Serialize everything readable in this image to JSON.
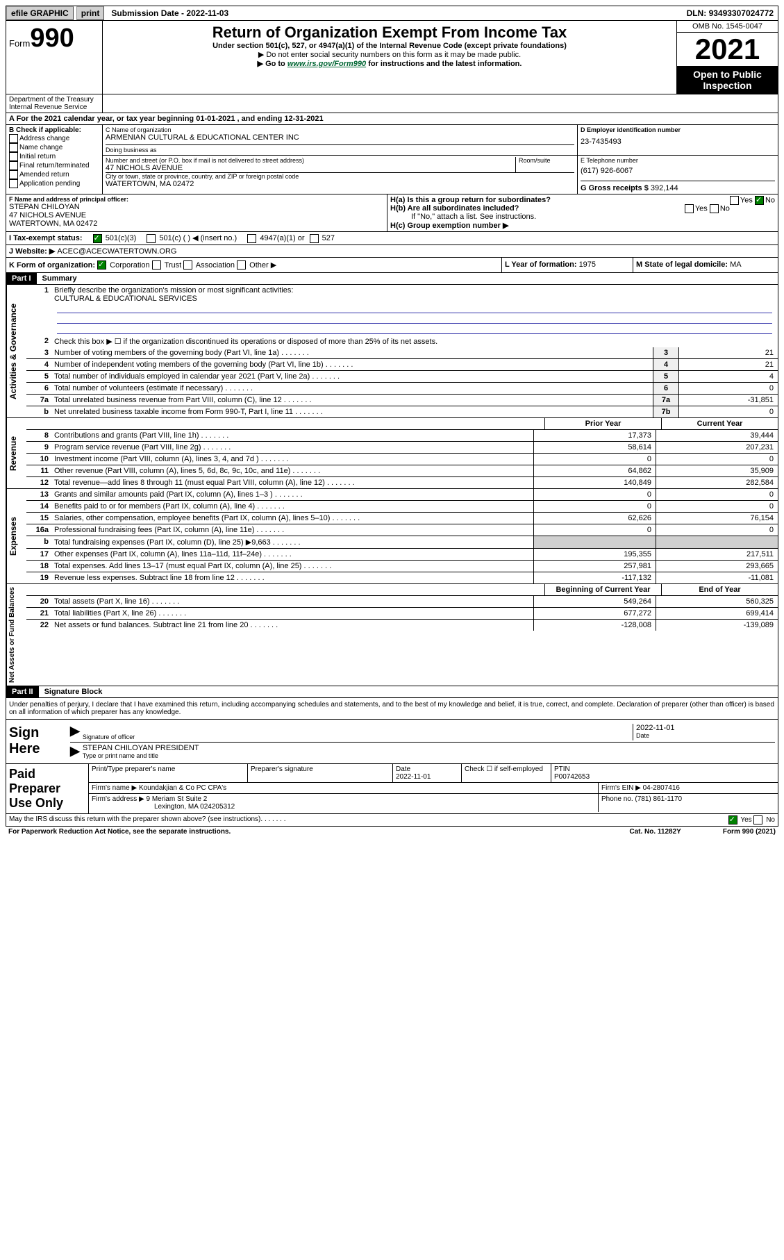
{
  "topbar": {
    "efile": "efile GRAPHIC",
    "print": "print",
    "subdate_label": "Submission Date - ",
    "subdate": "2022-11-03",
    "dln_label": "DLN: ",
    "dln": "93493307024772"
  },
  "header": {
    "form_prefix": "Form",
    "form_num": "990",
    "title": "Return of Organization Exempt From Income Tax",
    "subtitle": "Under section 501(c), 527, or 4947(a)(1) of the Internal Revenue Code (except private foundations)",
    "note1": "▶ Do not enter social security numbers on this form as it may be made public.",
    "note2_pre": "▶ Go to ",
    "note2_link": "www.irs.gov/Form990",
    "note2_post": " for instructions and the latest information.",
    "omb": "OMB No. 1545-0047",
    "year": "2021",
    "open_public": "Open to Public Inspection",
    "dept": "Department of the Treasury\nInternal Revenue Service"
  },
  "lineA": {
    "text_pre": "A For the 2021 calendar year, or tax year beginning ",
    "begin": "01-01-2021",
    "mid": " , and ending ",
    "end": "12-31-2021"
  },
  "B": {
    "label": "B Check if applicable:",
    "opts": [
      "Address change",
      "Name change",
      "Initial return",
      "Final return/terminated",
      "Amended return",
      "Application pending"
    ]
  },
  "C": {
    "name_label": "C Name of organization",
    "name": "ARMENIAN CULTURAL & EDUCATIONAL CENTER INC",
    "dba_label": "Doing business as",
    "street_label": "Number and street (or P.O. box if mail is not delivered to street address)",
    "room_label": "Room/suite",
    "street": "47 NICHOLS AVENUE",
    "city_label": "City or town, state or province, country, and ZIP or foreign postal code",
    "city": "WATERTOWN, MA  02472"
  },
  "D": {
    "label": "D Employer identification number",
    "value": "23-7435493"
  },
  "E": {
    "label": "E Telephone number",
    "value": "(617) 926-6067"
  },
  "G": {
    "label": "G Gross receipts $ ",
    "value": "392,144"
  },
  "F": {
    "label": "F  Name and address of principal officer:",
    "name": "STEPAN CHILOYAN",
    "addr1": "47 NICHOLS AVENUE",
    "addr2": "WATERTOWN, MA  02472"
  },
  "H": {
    "a_label": "H(a)  Is this a group return for subordinates?",
    "b_label": "H(b)  Are all subordinates included?",
    "b_note": "If \"No,\" attach a list. See instructions.",
    "c_label": "H(c)  Group exemption number ▶",
    "yes": "Yes",
    "no": "No"
  },
  "I": {
    "label": "I    Tax-exempt status:",
    "o1": "501(c)(3)",
    "o2": "501(c) (  ) ◀ (insert no.)",
    "o3": "4947(a)(1) or",
    "o4": "527"
  },
  "J": {
    "label": "J    Website: ▶ ",
    "value": "ACEC@ACECWATERTOWN.ORG"
  },
  "K": {
    "label": "K Form of organization:",
    "o1": "Corporation",
    "o2": "Trust",
    "o3": "Association",
    "o4": "Other ▶"
  },
  "L": {
    "label": "L Year of formation: ",
    "value": "1975"
  },
  "M": {
    "label": "M State of legal domicile: ",
    "value": "MA"
  },
  "partI": {
    "header": "Part I",
    "title": "Summary",
    "q1": "Briefly describe the organization's mission or most significant activities:",
    "q1val": "CULTURAL & EDUCATIONAL SERVICES",
    "q2": "Check this box ▶ ☐  if the organization discontinued its operations or disposed of more than 25% of its net assets.",
    "rows_gov": [
      {
        "n": "3",
        "d": "Number of voting members of the governing body (Part VI, line 1a)",
        "box": "3",
        "v": "21"
      },
      {
        "n": "4",
        "d": "Number of independent voting members of the governing body (Part VI, line 1b)",
        "box": "4",
        "v": "21"
      },
      {
        "n": "5",
        "d": "Total number of individuals employed in calendar year 2021 (Part V, line 2a)",
        "box": "5",
        "v": "4"
      },
      {
        "n": "6",
        "d": "Total number of volunteers (estimate if necessary)",
        "box": "6",
        "v": "0"
      },
      {
        "n": "7a",
        "d": "Total unrelated business revenue from Part VIII, column (C), line 12",
        "box": "7a",
        "v": "-31,851"
      },
      {
        "n": "b",
        "d": "Net unrelated business taxable income from Form 990-T, Part I, line 11",
        "box": "7b",
        "v": "0"
      }
    ],
    "prior_label": "Prior Year",
    "current_label": "Current Year",
    "rows_rev": [
      {
        "n": "8",
        "d": "Contributions and grants (Part VIII, line 1h)",
        "p": "17,373",
        "c": "39,444"
      },
      {
        "n": "9",
        "d": "Program service revenue (Part VIII, line 2g)",
        "p": "58,614",
        "c": "207,231"
      },
      {
        "n": "10",
        "d": "Investment income (Part VIII, column (A), lines 3, 4, and 7d )",
        "p": "0",
        "c": "0"
      },
      {
        "n": "11",
        "d": "Other revenue (Part VIII, column (A), lines 5, 6d, 8c, 9c, 10c, and 11e)",
        "p": "64,862",
        "c": "35,909"
      },
      {
        "n": "12",
        "d": "Total revenue—add lines 8 through 11 (must equal Part VIII, column (A), line 12)",
        "p": "140,849",
        "c": "282,584"
      }
    ],
    "rows_exp": [
      {
        "n": "13",
        "d": "Grants and similar amounts paid (Part IX, column (A), lines 1–3 )",
        "p": "0",
        "c": "0"
      },
      {
        "n": "14",
        "d": "Benefits paid to or for members (Part IX, column (A), line 4)",
        "p": "0",
        "c": "0"
      },
      {
        "n": "15",
        "d": "Salaries, other compensation, employee benefits (Part IX, column (A), lines 5–10)",
        "p": "62,626",
        "c": "76,154"
      },
      {
        "n": "16a",
        "d": "Professional fundraising fees (Part IX, column (A), line 11e)",
        "p": "0",
        "c": "0"
      },
      {
        "n": "b",
        "d": "Total fundraising expenses (Part IX, column (D), line 25) ▶9,663",
        "p": "",
        "c": "",
        "grey": true
      },
      {
        "n": "17",
        "d": "Other expenses (Part IX, column (A), lines 11a–11d, 11f–24e)",
        "p": "195,355",
        "c": "217,511"
      },
      {
        "n": "18",
        "d": "Total expenses. Add lines 13–17 (must equal Part IX, column (A), line 25)",
        "p": "257,981",
        "c": "293,665"
      },
      {
        "n": "19",
        "d": "Revenue less expenses. Subtract line 18 from line 12",
        "p": "-117,132",
        "c": "-11,081"
      }
    ],
    "begin_label": "Beginning of Current Year",
    "end_label": "End of Year",
    "rows_net": [
      {
        "n": "20",
        "d": "Total assets (Part X, line 16)",
        "p": "549,264",
        "c": "560,325"
      },
      {
        "n": "21",
        "d": "Total liabilities (Part X, line 26)",
        "p": "677,272",
        "c": "699,414"
      },
      {
        "n": "22",
        "d": "Net assets or fund balances. Subtract line 21 from line 20",
        "p": "-128,008",
        "c": "-139,089"
      }
    ],
    "side_gov": "Activities & Governance",
    "side_rev": "Revenue",
    "side_exp": "Expenses",
    "side_net": "Net Assets or Fund Balances"
  },
  "partII": {
    "header": "Part II",
    "title": "Signature Block",
    "declaration": "Under penalties of perjury, I declare that I have examined this return, including accompanying schedules and statements, and to the best of my knowledge and belief, it is true, correct, and complete. Declaration of preparer (other than officer) is based on all information of which preparer has any knowledge.",
    "sign_here": "Sign Here",
    "sig_officer": "Signature of officer",
    "sig_date": "Date",
    "sig_date_val": "2022-11-01",
    "officer_name": "STEPAN CHILOYAN  PRESIDENT",
    "officer_label": "Type or print name and title",
    "paid": "Paid Preparer Use Only",
    "prep_name_label": "Print/Type preparer's name",
    "prep_sig_label": "Preparer's signature",
    "prep_date_label": "Date",
    "prep_date": "2022-11-01",
    "prep_check": "Check ☐ if self-employed",
    "ptin_label": "PTIN",
    "ptin": "P00742653",
    "firm_name_label": "Firm's name    ▶ ",
    "firm_name": "Koundakjian & Co PC CPA's",
    "firm_ein_label": "Firm's EIN ▶ ",
    "firm_ein": "04-2807416",
    "firm_addr_label": "Firm's address ▶ ",
    "firm_addr1": "9 Meriam St Suite 2",
    "firm_addr2": "Lexington, MA  024205312",
    "phone_label": "Phone no. ",
    "phone": "(781) 861-1170",
    "may_discuss": "May the IRS discuss this return with the preparer shown above? (see instructions)"
  },
  "footer": {
    "left": "For Paperwork Reduction Act Notice, see the separate instructions.",
    "mid": "Cat. No. 11282Y",
    "right": "Form 990 (2021)"
  }
}
